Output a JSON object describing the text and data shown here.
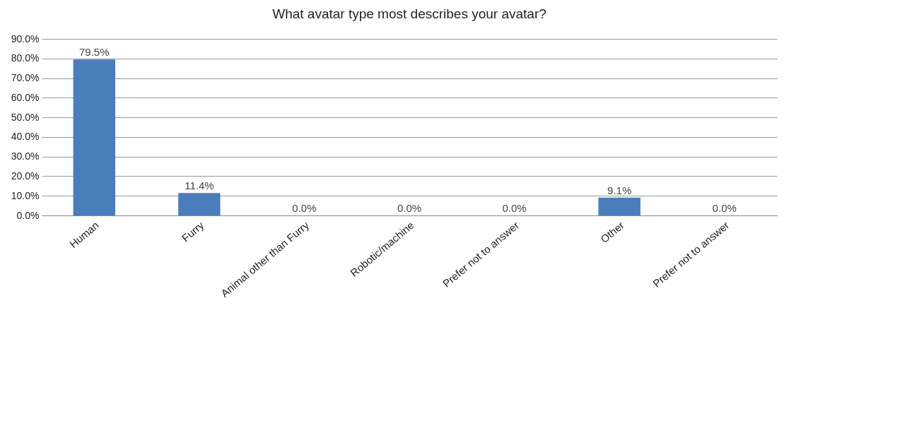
{
  "chart_data": {
    "type": "bar",
    "title": "What avatar type most describes your avatar?",
    "categories": [
      "Human",
      "Furry",
      "Animal other than Furry",
      "Robotic/machine",
      "Prefer not to answer",
      "Other",
      "Prefer not to answer"
    ],
    "values": [
      79.5,
      11.4,
      0.0,
      0.0,
      0.0,
      9.1,
      0.0
    ],
    "value_labels": [
      "79.5%",
      "11.4%",
      "0.0%",
      "0.0%",
      "0.0%",
      "9.1%",
      "0.0%"
    ],
    "color": "#4a7ebb",
    "ylim": [
      0,
      90
    ],
    "yticks": [
      {
        "value": 0,
        "label": "0.0%"
      },
      {
        "value": 10,
        "label": "10.0%"
      },
      {
        "value": 20,
        "label": "20.0%"
      },
      {
        "value": 30,
        "label": "30.0%"
      },
      {
        "value": 40,
        "label": "40.0%"
      },
      {
        "value": 50,
        "label": "50.0%"
      },
      {
        "value": 60,
        "label": "60.0%"
      },
      {
        "value": 70,
        "label": "70.0%"
      },
      {
        "value": 80,
        "label": "80.0%"
      },
      {
        "value": 90,
        "label": "90.0%"
      }
    ],
    "grid": "y"
  }
}
